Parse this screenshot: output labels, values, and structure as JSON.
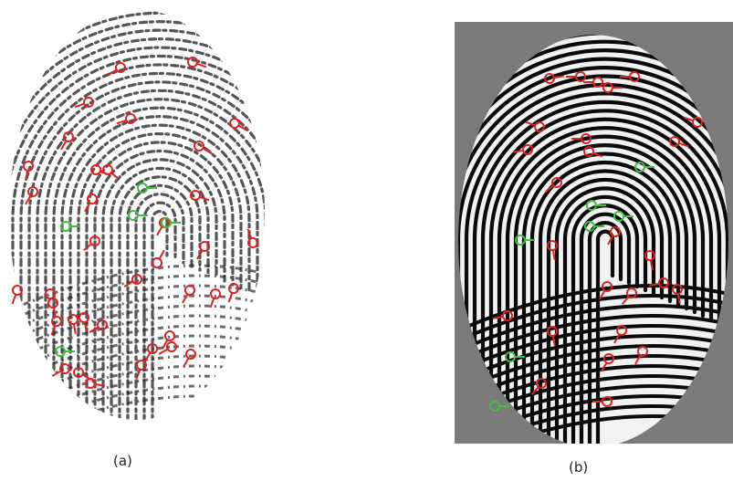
{
  "figure": {
    "panels": [
      {
        "caption": "(a)",
        "background": "#ffffff",
        "ridge_color": "#2b2b2b"
      },
      {
        "caption": "(b)",
        "background": "#7a7a7a",
        "ridge_color": "#0a0a0a",
        "ridge_highlight": "#f2f2f2"
      }
    ],
    "marker_colors": {
      "ending": "#e02020",
      "bifurcation": "#3cc03c"
    }
  }
}
